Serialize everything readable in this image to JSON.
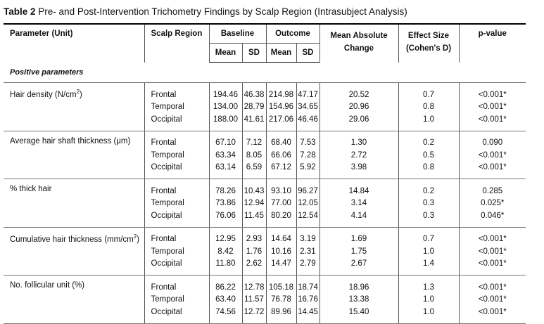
{
  "caption": {
    "label": "Table 2",
    "text": "Pre- and Post-Intervention Trichometry Findings by Scalp Region (Intrasubject Analysis)"
  },
  "headers": {
    "parameter": "Parameter (Unit)",
    "region": "Scalp Region",
    "baseline": "Baseline",
    "outcome": "Outcome",
    "mean_abs_change": "Mean Absolute Change",
    "effect_size": "Effect Size (Cohen's D)",
    "pvalue": "p-value",
    "mean": "Mean",
    "sd": "SD"
  },
  "section": "Positive parameters",
  "groups": [
    {
      "parameter": "Hair density (N/cm",
      "sup": "2",
      "suffix": ")",
      "rows": [
        {
          "region": "Frontal",
          "b_mean": "194.46",
          "b_sd": "46.38",
          "o_mean": "214.98",
          "o_sd": "47.17",
          "change": "20.52",
          "effect": "0.7",
          "p": "<0.001*"
        },
        {
          "region": "Temporal",
          "b_mean": "134.00",
          "b_sd": "28.79",
          "o_mean": "154.96",
          "o_sd": "34.65",
          "change": "20.96",
          "effect": "0.8",
          "p": "<0.001*"
        },
        {
          "region": "Occipital",
          "b_mean": "188.00",
          "b_sd": "41.61",
          "o_mean": "217.06",
          "o_sd": "46.46",
          "change": "29.06",
          "effect": "1.0",
          "p": "<0.001*"
        }
      ]
    },
    {
      "parameter": "Average hair shaft thickness (μm)",
      "sup": "",
      "suffix": "",
      "rows": [
        {
          "region": "Frontal",
          "b_mean": "67.10",
          "b_sd": "7.12",
          "o_mean": "68.40",
          "o_sd": "7.53",
          "change": "1.30",
          "effect": "0.2",
          "p": "0.090"
        },
        {
          "region": "Temporal",
          "b_mean": "63.34",
          "b_sd": "8.05",
          "o_mean": "66.06",
          "o_sd": "7.28",
          "change": "2.72",
          "effect": "0.5",
          "p": "<0.001*"
        },
        {
          "region": "Occipital",
          "b_mean": "63.14",
          "b_sd": "6.59",
          "o_mean": "67.12",
          "o_sd": "5.92",
          "change": "3.98",
          "effect": "0.8",
          "p": "<0.001*"
        }
      ]
    },
    {
      "parameter": "% thick hair",
      "sup": "",
      "suffix": "",
      "rows": [
        {
          "region": "Frontal",
          "b_mean": "78.26",
          "b_sd": "10.43",
          "o_mean": "93.10",
          "o_sd": "96.27",
          "change": "14.84",
          "effect": "0.2",
          "p": "0.285"
        },
        {
          "region": "Temporal",
          "b_mean": "73.86",
          "b_sd": "12.94",
          "o_mean": "77.00",
          "o_sd": "12.05",
          "change": "3.14",
          "effect": "0.3",
          "p": "0.025*"
        },
        {
          "region": "Occipital",
          "b_mean": "76.06",
          "b_sd": "11.45",
          "o_mean": "80.20",
          "o_sd": "12.54",
          "change": "4.14",
          "effect": "0.3",
          "p": "0.046*"
        }
      ]
    },
    {
      "parameter": "Cumulative hair thickness (mm/cm",
      "sup": "2",
      "suffix": ")",
      "rows": [
        {
          "region": "Frontal",
          "b_mean": "12.95",
          "b_sd": "2.93",
          "o_mean": "14.64",
          "o_sd": "3.19",
          "change": "1.69",
          "effect": "0.7",
          "p": "<0.001*"
        },
        {
          "region": "Temporal",
          "b_mean": "8.42",
          "b_sd": "1.76",
          "o_mean": "10.16",
          "o_sd": "2.31",
          "change": "1.75",
          "effect": "1.0",
          "p": "<0.001*"
        },
        {
          "region": "Occipital",
          "b_mean": "11.80",
          "b_sd": "2.62",
          "o_mean": "14.47",
          "o_sd": "2.79",
          "change": "2.67",
          "effect": "1.4",
          "p": "<0.001*"
        }
      ]
    },
    {
      "parameter": "No. follicular unit (%)",
      "sup": "",
      "suffix": "",
      "rows": [
        {
          "region": "Frontal",
          "b_mean": "86.22",
          "b_sd": "12.78",
          "o_mean": "105.18",
          "o_sd": "18.74",
          "change": "18.96",
          "effect": "1.3",
          "p": "<0.001*"
        },
        {
          "region": "Temporal",
          "b_mean": "63.40",
          "b_sd": "11.57",
          "o_mean": "76.78",
          "o_sd": "16.76",
          "change": "13.38",
          "effect": "1.0",
          "p": "<0.001*"
        },
        {
          "region": "Occipital",
          "b_mean": "74.56",
          "b_sd": "12.72",
          "o_mean": "89.96",
          "o_sd": "14.45",
          "change": "15.40",
          "effect": "1.0",
          "p": "<0.001*"
        }
      ]
    }
  ]
}
